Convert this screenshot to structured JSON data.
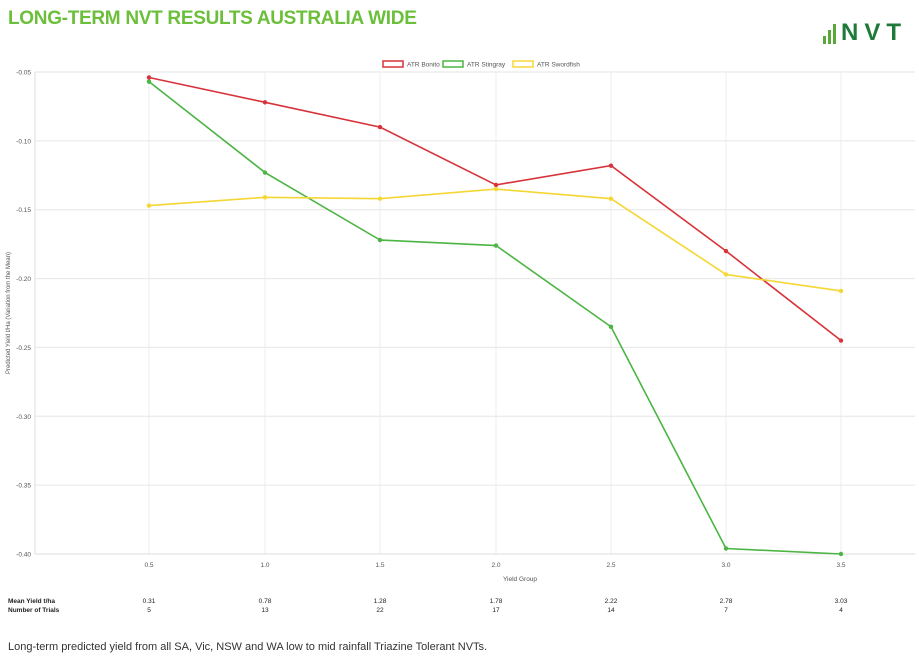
{
  "header": {
    "title": "LONG-TERM NVT RESULTS AUSTRALIA WIDE",
    "logo_text": "NVT"
  },
  "caption": "Long-term predicted yield from all SA, Vic, NSW and WA low to mid rainfall Triazine Tolerant NVTs.",
  "chart_data": {
    "type": "line",
    "x": [
      0.5,
      1.0,
      1.5,
      2.0,
      2.5,
      3.0,
      3.5
    ],
    "x_tick_labels": [
      "0.5",
      "1.0",
      "1.5",
      "2.0",
      "2.5",
      "3.0",
      "3.5"
    ],
    "xlabel": "Yield Group",
    "ylabel": "Predicted Yield t/Ha (Variation from the Mean)",
    "y_ticks": [
      -0.05,
      -0.1,
      -0.15,
      -0.2,
      -0.25,
      -0.3,
      -0.35,
      -0.4
    ],
    "y_tick_labels": [
      "-0.05",
      "-0.10",
      "-0.15",
      "-0.20",
      "-0.25",
      "-0.30",
      "-0.35",
      "-0.40"
    ],
    "ylim": [
      -0.4,
      -0.05
    ],
    "grid": true,
    "legend_position": "top-center",
    "series": [
      {
        "name": "ATR Bonito",
        "color": "#d8323a",
        "values": [
          -0.054,
          -0.072,
          -0.09,
          -0.132,
          -0.118,
          -0.18,
          -0.245
        ]
      },
      {
        "name": "ATR Stingray",
        "color": "#4bb543",
        "values": [
          -0.057,
          -0.123,
          -0.172,
          -0.176,
          -0.235,
          -0.396,
          -0.4
        ]
      },
      {
        "name": "ATR Swordfish",
        "color": "#f5d733",
        "values": [
          -0.147,
          -0.141,
          -0.142,
          -0.135,
          -0.142,
          -0.197,
          -0.209
        ]
      }
    ],
    "summary_rows": [
      {
        "label": "Mean Yield t/ha",
        "values": [
          "0.31",
          "0.78",
          "1.28",
          "1.78",
          "2.22",
          "2.78",
          "3.03"
        ]
      },
      {
        "label": "Number of Trials",
        "values": [
          "5",
          "13",
          "22",
          "17",
          "14",
          "7",
          "4"
        ]
      }
    ]
  }
}
